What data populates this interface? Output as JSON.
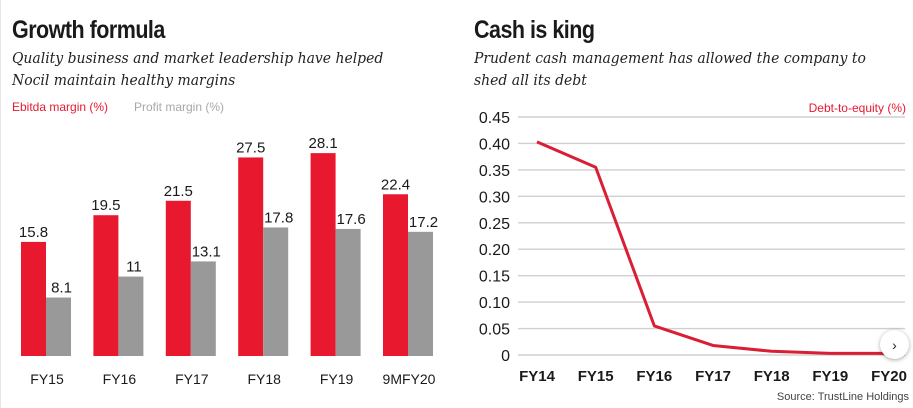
{
  "colors": {
    "ebitda": "#e8192f",
    "profit": "#999999",
    "line": "#d91e35",
    "grid": "#cfcfcf",
    "legend_red": "#e8192f",
    "legend_gray": "#a8a8a8"
  },
  "left_panel": {
    "title": "Growth formula",
    "subtitle_line1": "Quality business and market leadership have helped",
    "subtitle_line2": "Nocil maintain healthy margins",
    "legend": [
      {
        "label": "Ebitda margin (%)",
        "color_key": "ebitda"
      },
      {
        "label": "Profit margin (%)",
        "color_key": "profit"
      }
    ]
  },
  "right_panel": {
    "title": "Cash is king",
    "subtitle_line1": "Prudent cash management has allowed the company to",
    "subtitle_line2": "shed all its debt",
    "legend": [
      {
        "label": "Debt-to-equity (%)",
        "color_key": "line"
      }
    ],
    "source": "Source: TrustLine Holdings",
    "next_button_icon": "chevron-right-icon",
    "next_button_glyph": "›"
  },
  "chart_data": [
    {
      "type": "bar",
      "title": "Growth formula",
      "xlabel": "",
      "ylabel": "",
      "categories": [
        "FY15",
        "FY16",
        "FY17",
        "FY18",
        "FY19",
        "9MFY20"
      ],
      "series": [
        {
          "name": "Ebitda margin (%)",
          "values": [
            15.8,
            19.5,
            21.5,
            27.5,
            28.1,
            22.4
          ],
          "labels": [
            "15.8",
            "19.5",
            "21.5",
            "27.5",
            "28.1",
            "22.4"
          ]
        },
        {
          "name": "Profit margin (%)",
          "values": [
            8.1,
            11,
            13.1,
            17.8,
            17.6,
            17.2
          ],
          "labels": [
            "8.1",
            "11",
            "13.1",
            "17.8",
            "17.6",
            "17.2"
          ]
        }
      ],
      "ylim": [
        0,
        30
      ],
      "grid": false,
      "legend_position": "top-left"
    },
    {
      "type": "line",
      "title": "Cash is king",
      "xlabel": "",
      "ylabel": "Debt-to-equity (%)",
      "x": [
        "FY14",
        "FY15",
        "FY16",
        "FY17",
        "FY18",
        "FY19",
        "FY20"
      ],
      "series": [
        {
          "name": "Debt-to-equity (%)",
          "values": [
            0.403,
            0.355,
            0.055,
            0.018,
            0.007,
            0.003,
            0.003
          ]
        }
      ],
      "yticks": [
        "0",
        "0.05",
        "0.10",
        "0.15",
        "0.20",
        "0.25",
        "0.30",
        "0.35",
        "0.40",
        "0.45"
      ],
      "ytick_values": [
        0,
        0.05,
        0.1,
        0.15,
        0.2,
        0.25,
        0.3,
        0.35,
        0.4,
        0.45
      ],
      "ylim": [
        0,
        0.45
      ],
      "grid": true,
      "legend_position": "top-right"
    }
  ]
}
